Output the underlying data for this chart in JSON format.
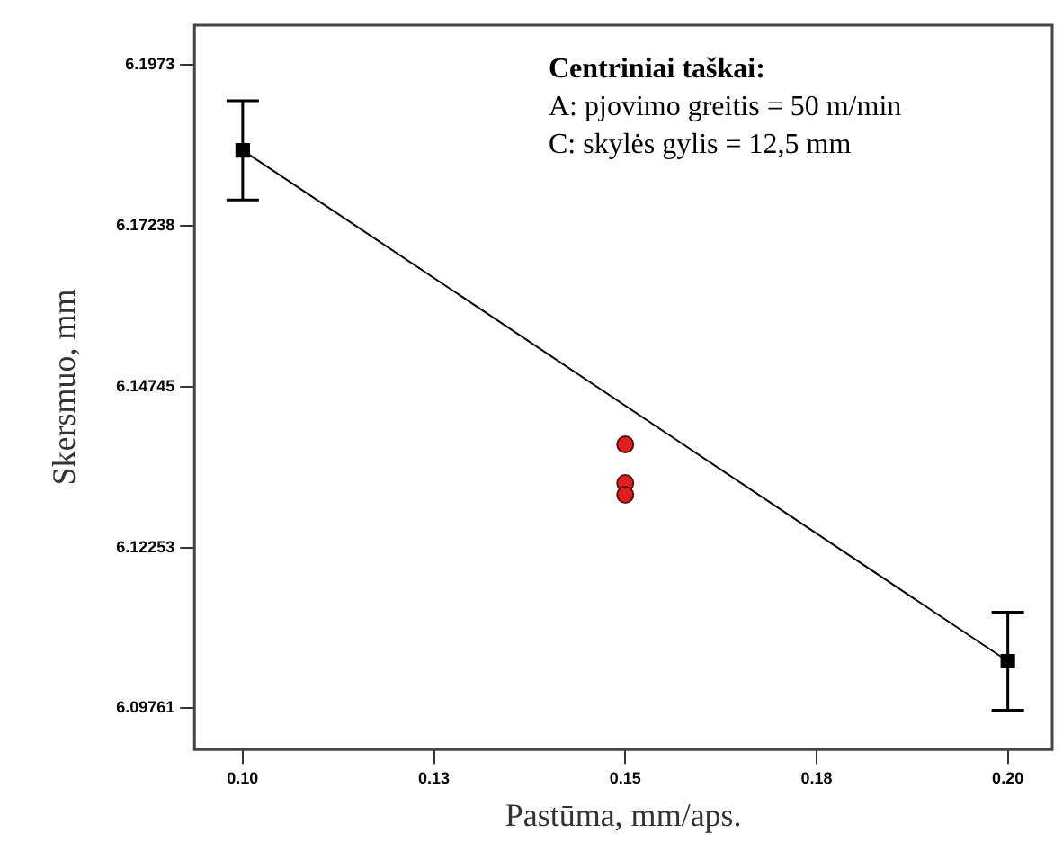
{
  "chart_data": {
    "type": "line",
    "xlabel": "Pastūma, mm/aps.",
    "ylabel": "Skersmuo, mm",
    "annotations": [
      "Centriniai taškai:",
      "A: pjovimo greitis = 50 m/min",
      "C: skylės gylis = 12,5 mm"
    ],
    "series": [
      {
        "type": "line",
        "color": "#000000",
        "marker": "square",
        "x": [
          0.1,
          0.2
        ],
        "values": [
          6.1841,
          6.1049
        ],
        "errors": [
          0.0077,
          0.0076
        ]
      },
      {
        "type": "scatter",
        "color": "#e02020",
        "marker": "circle",
        "x": [
          0.15,
          0.15,
          0.15
        ],
        "values": [
          6.1385,
          6.1325,
          6.1307
        ]
      }
    ],
    "xlim": [
      0.0937,
      0.2058
    ],
    "ylim": [
      6.0912,
      6.2035
    ],
    "xticks": [
      {
        "value": 0.1,
        "label": "0.10"
      },
      {
        "value": 0.125,
        "label": "0.13"
      },
      {
        "value": 0.15,
        "label": "0.15"
      },
      {
        "value": 0.175,
        "label": "0.18"
      },
      {
        "value": 0.2,
        "label": "0.20"
      }
    ],
    "yticks": [
      6.09761,
      6.12253,
      6.14745,
      6.17238,
      6.1973
    ]
  }
}
